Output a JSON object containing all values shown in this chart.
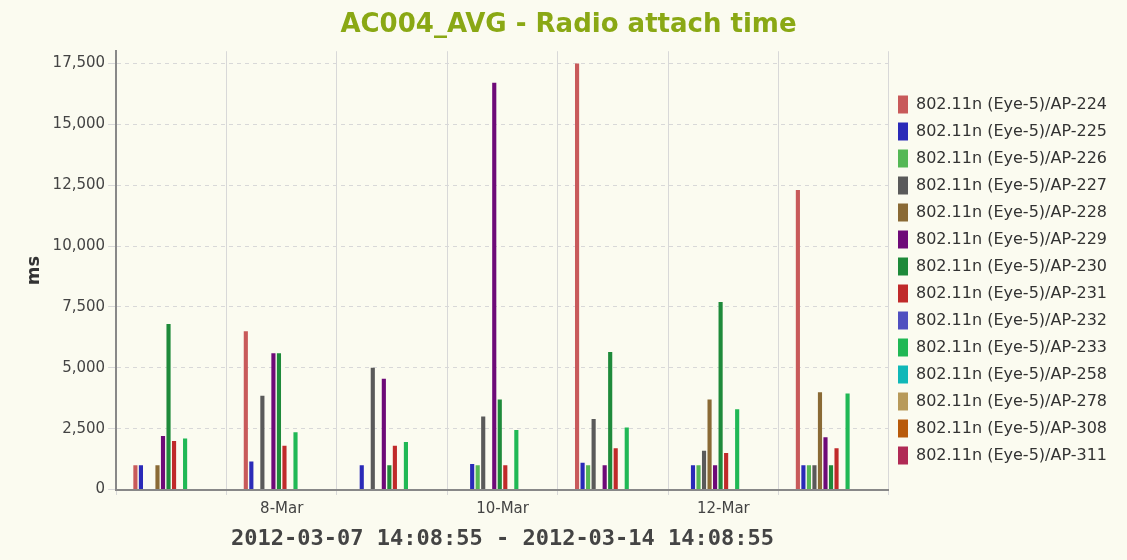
{
  "chart_data": {
    "type": "bar",
    "title": "AC004_AVG - Radio attach time",
    "xlabel": "2012-03-07 14:08:55 - 2012-03-14 14:08:55",
    "ylabel": "ms",
    "categories": [
      null,
      "8-Mar",
      null,
      "10-Mar",
      null,
      "12-Mar",
      null
    ],
    "ylim": [
      0,
      18000
    ],
    "yticks": [
      0,
      {
        "value": 2500,
        "label": "2,500"
      },
      {
        "value": 5000,
        "label": "5,000"
      },
      {
        "value": 7500,
        "label": "7,500"
      },
      {
        "value": 10000,
        "label": "10,000"
      },
      {
        "value": 12500,
        "label": "12,500"
      },
      {
        "value": 15000,
        "label": "15,000"
      },
      {
        "value": 17500,
        "label": "17,500"
      }
    ],
    "grid": true,
    "legend": "right",
    "series": [
      {
        "name": "802.11n (Eye-5)/AP-224",
        "color": "#c85a5a",
        "values": [
          1000,
          6500,
          null,
          null,
          17500,
          null,
          12300
        ]
      },
      {
        "name": "802.11n (Eye-5)/AP-225",
        "color": "#2a2ab8",
        "values": [
          1000,
          1150,
          1000,
          1050,
          1100,
          1000,
          1000
        ]
      },
      {
        "name": "802.11n (Eye-5)/AP-226",
        "color": "#55b855",
        "values": [
          null,
          null,
          null,
          1000,
          1000,
          1000,
          1000
        ]
      },
      {
        "name": "802.11n (Eye-5)/AP-227",
        "color": "#5a5a5a",
        "values": [
          null,
          3850,
          5000,
          3000,
          2900,
          1600,
          1000
        ]
      },
      {
        "name": "802.11n (Eye-5)/AP-228",
        "color": "#8a6a35",
        "values": [
          1000,
          null,
          null,
          null,
          null,
          3700,
          4000
        ]
      },
      {
        "name": "802.11n (Eye-5)/AP-229",
        "color": "#6e0a78",
        "values": [
          2200,
          5600,
          4550,
          16700,
          1000,
          1000,
          2150
        ]
      },
      {
        "name": "802.11n (Eye-5)/AP-230",
        "color": "#1e8a3a",
        "values": [
          6800,
          5600,
          1000,
          3700,
          5650,
          7700,
          1000
        ]
      },
      {
        "name": "802.11n (Eye-5)/AP-231",
        "color": "#c02a2a",
        "values": [
          2000,
          1800,
          1800,
          1000,
          1700,
          1500,
          1700
        ]
      },
      {
        "name": "802.11n (Eye-5)/AP-232",
        "color": "#5050c0",
        "values": [
          null,
          null,
          null,
          null,
          null,
          null,
          null
        ]
      },
      {
        "name": "802.11n (Eye-5)/AP-233",
        "color": "#20b855",
        "values": [
          2100,
          2350,
          1950,
          2450,
          2550,
          3300,
          3950
        ]
      },
      {
        "name": "802.11n (Eye-5)/AP-258",
        "color": "#10b8b8",
        "values": [
          null,
          null,
          null,
          null,
          null,
          null,
          null
        ]
      },
      {
        "name": "802.11n (Eye-5)/AP-278",
        "color": "#b89a5a",
        "values": [
          null,
          null,
          null,
          null,
          null,
          null,
          null
        ]
      },
      {
        "name": "802.11n (Eye-5)/AP-308",
        "color": "#b85a0a",
        "values": [
          null,
          null,
          null,
          null,
          null,
          null,
          null
        ]
      },
      {
        "name": "802.11n (Eye-5)/AP-311",
        "color": "#b02a55",
        "values": [
          null,
          null,
          null,
          null,
          null,
          null,
          null
        ]
      }
    ]
  }
}
